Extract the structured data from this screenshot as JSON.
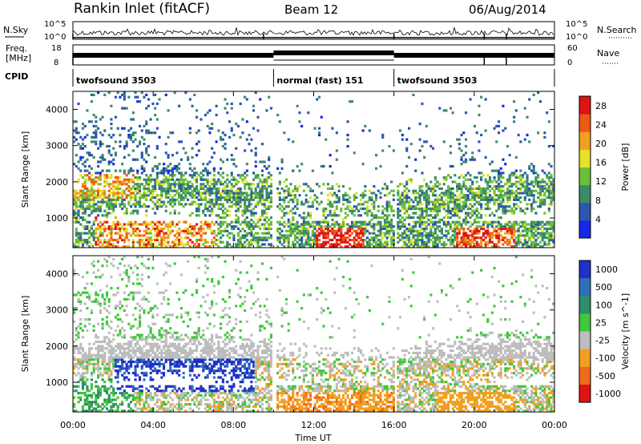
{
  "header": {
    "title": "Rankin Inlet (fitACF)",
    "beam": "Beam 12",
    "date": "06/Aug/2014"
  },
  "strip_labels": {
    "nsky": "N.Sky",
    "nsearch": "N.Search",
    "freq_line1": "Freq.",
    "freq_line2": "[MHz]",
    "nave": "Nave",
    "cpid": "CPID",
    "noise_left_top": "10^5",
    "noise_left_bottom": "10^0",
    "noise_right_top": "10^5",
    "noise_right_bottom": "10^0",
    "freq_top": "18",
    "freq_bottom": "8",
    "nave_top": "60",
    "nave_bottom": "0"
  },
  "cpid_segments": [
    {
      "label": "twofsound 3503",
      "start_h": 0,
      "end_h": 10
    },
    {
      "label": "normal (fast) 151",
      "start_h": 10,
      "end_h": 16
    },
    {
      "label": "twofsound 3503",
      "start_h": 16,
      "end_h": 24
    }
  ],
  "chart_data": [
    {
      "type": "heatmap",
      "ylabel": "Slant Range [km]",
      "xlabel": "Time UT",
      "x_ticks": [
        "00:00",
        "04:00",
        "08:00",
        "12:00",
        "16:00",
        "20:00",
        "00:00"
      ],
      "y_ticks": [
        "1000",
        "2000",
        "3000",
        "4000"
      ],
      "x_range_hours": [
        0,
        24
      ],
      "y_range_km": [
        180,
        4500
      ],
      "colorbar": {
        "label": "Power [dB]",
        "ticks": [
          "4",
          "8",
          "12",
          "16",
          "20",
          "24",
          "28"
        ],
        "range": [
          0,
          30
        ],
        "colors": [
          "#1428e6",
          "#2a57b0",
          "#3d8a6a",
          "#6bbf3a",
          "#e8e02a",
          "#f0a020",
          "#ec5a14",
          "#e01414"
        ]
      }
    },
    {
      "type": "heatmap",
      "ylabel": "Slant Range [km]",
      "xlabel": "Time UT",
      "x_ticks": [
        "00:00",
        "04:00",
        "08:00",
        "12:00",
        "16:00",
        "20:00",
        "00:00"
      ],
      "y_ticks": [
        "1000",
        "2000",
        "3000",
        "4000"
      ],
      "x_range_hours": [
        0,
        24
      ],
      "y_range_km": [
        180,
        4500
      ],
      "colorbar": {
        "label": "Velocity [m s^-1]",
        "ticks": [
          "1000",
          "500",
          "100",
          "25",
          "-25",
          "-100",
          "-500",
          "-1000"
        ],
        "colors": [
          "#2030c8",
          "#2f6fb8",
          "#2f8f6a",
          "#3ec83a",
          "#bdbdbd",
          "#f0a020",
          "#f06a18",
          "#e01414"
        ]
      }
    }
  ]
}
